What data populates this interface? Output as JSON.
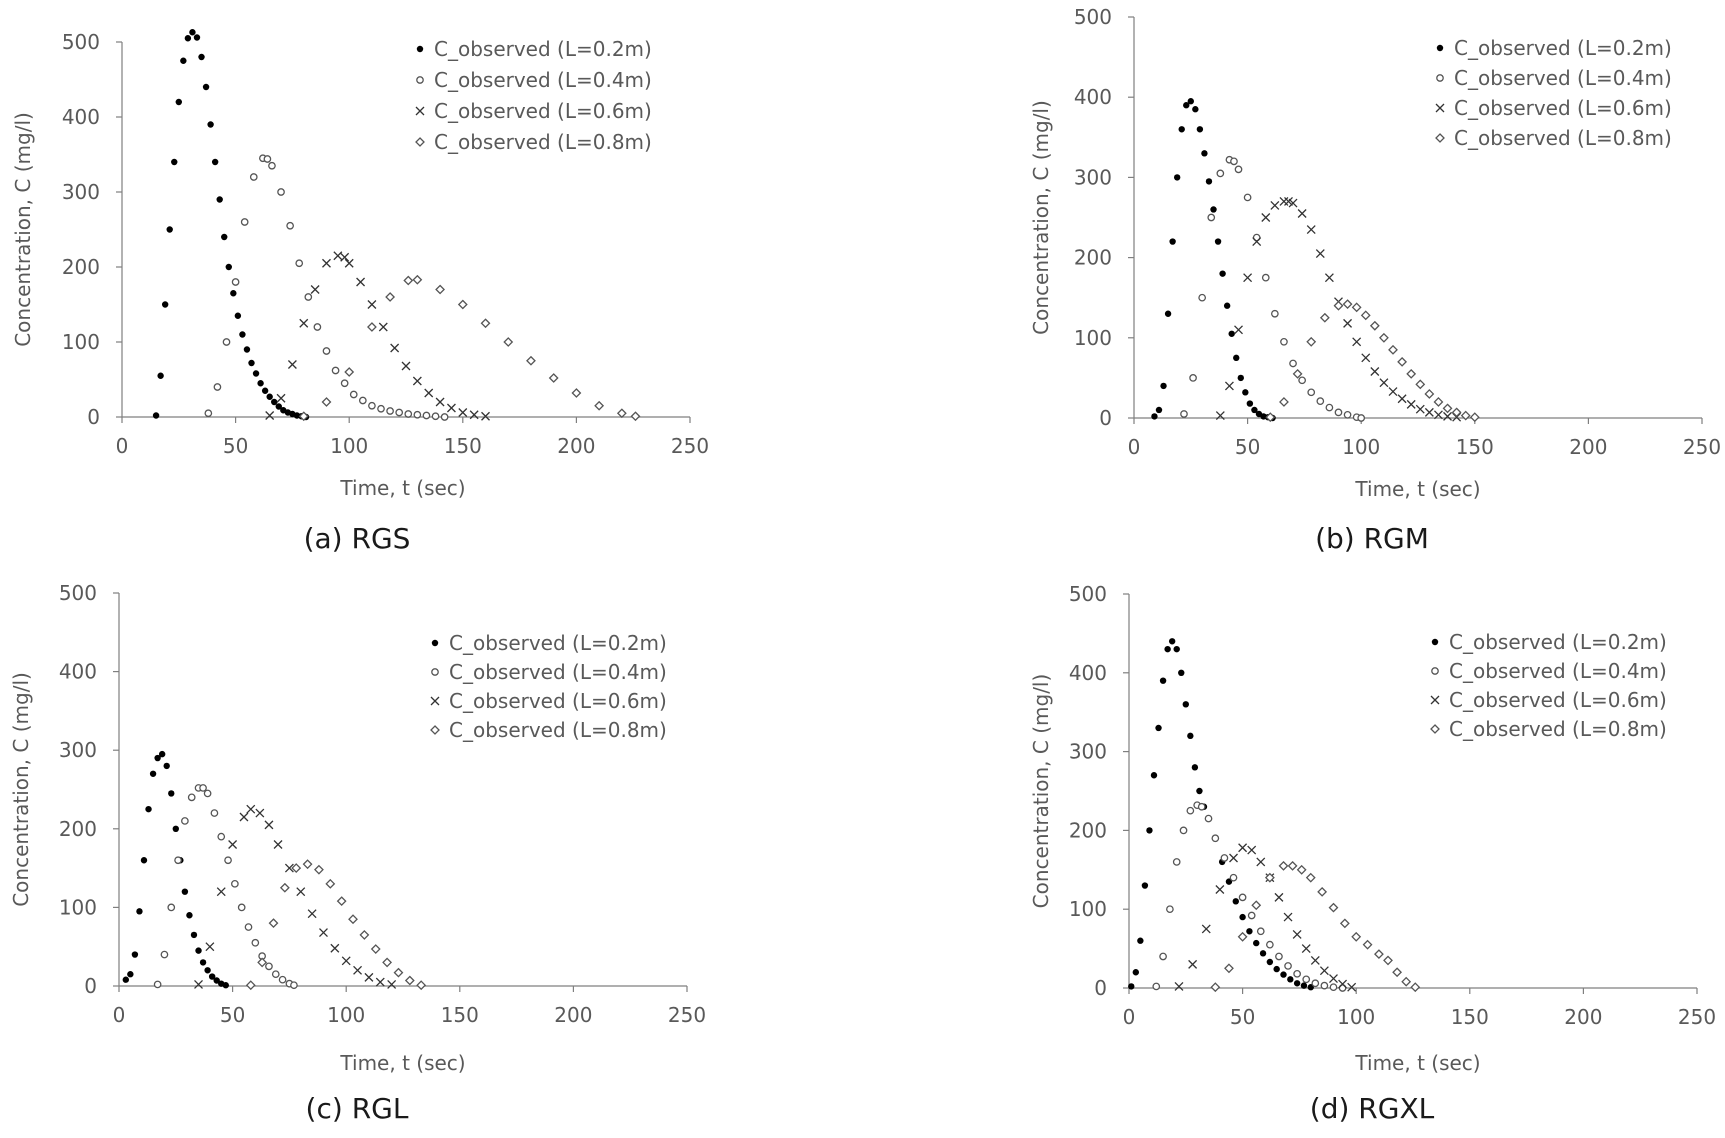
{
  "chart_data": [
    {
      "type": "scatter",
      "caption": "(a) RGS",
      "xlabel": "Time, t (sec)",
      "ylabel": "Concentration, C (mg/l)",
      "xlim": [
        0,
        250
      ],
      "ylim": [
        0,
        500
      ],
      "xticks": [
        0,
        50,
        100,
        150,
        200,
        250
      ],
      "yticks": [
        0,
        100,
        200,
        300,
        400,
        500
      ],
      "legend_position": "top-right",
      "series": [
        {
          "name": "C_observed (L=0.2m)",
          "marker": "dot",
          "x": [
            15,
            17,
            19,
            21,
            23,
            25,
            27,
            29,
            31,
            33,
            35,
            37,
            39,
            41,
            43,
            45,
            47,
            49,
            51,
            53,
            55,
            57,
            59,
            61,
            63,
            65,
            67,
            69,
            71,
            73,
            75,
            77,
            79,
            81
          ],
          "y": [
            2,
            55,
            150,
            250,
            340,
            420,
            475,
            505,
            513,
            506,
            480,
            440,
            390,
            340,
            290,
            240,
            200,
            165,
            135,
            110,
            90,
            72,
            58,
            45,
            35,
            27,
            20,
            14,
            9,
            6,
            4,
            2,
            1,
            0
          ]
        },
        {
          "name": "C_observed (L=0.4m)",
          "marker": "circle",
          "x": [
            38,
            42,
            46,
            50,
            54,
            58,
            62,
            64,
            66,
            70,
            74,
            78,
            82,
            86,
            90,
            94,
            98,
            102,
            106,
            110,
            114,
            118,
            122,
            126,
            130,
            134,
            138,
            142
          ],
          "y": [
            5,
            40,
            100,
            180,
            260,
            320,
            345,
            344,
            335,
            300,
            255,
            205,
            160,
            120,
            88,
            62,
            45,
            30,
            22,
            15,
            11,
            8,
            6,
            4,
            3,
            2,
            1,
            0
          ]
        },
        {
          "name": "C_observed (L=0.6m)",
          "marker": "x",
          "x": [
            65,
            70,
            75,
            80,
            85,
            90,
            95,
            98,
            100,
            105,
            110,
            115,
            120,
            125,
            130,
            135,
            140,
            145,
            150,
            155,
            160
          ],
          "y": [
            2,
            25,
            70,
            125,
            170,
            205,
            215,
            213,
            205,
            180,
            150,
            120,
            92,
            68,
            48,
            32,
            20,
            12,
            6,
            3,
            1
          ]
        },
        {
          "name": "C_observed (L=0.8m)",
          "marker": "diamond",
          "x": [
            80,
            90,
            100,
            110,
            118,
            126,
            130,
            140,
            150,
            160,
            170,
            180,
            190,
            200,
            210,
            220,
            226
          ],
          "y": [
            1,
            20,
            60,
            120,
            160,
            182,
            183,
            170,
            150,
            125,
            100,
            75,
            52,
            32,
            15,
            5,
            1
          ]
        }
      ]
    },
    {
      "type": "scatter",
      "caption": "(b) RGM",
      "xlabel": "Time, t (sec)",
      "ylabel": "Concentration, C (mg/l)",
      "xlim": [
        0,
        250
      ],
      "ylim": [
        0,
        500
      ],
      "xticks": [
        0,
        50,
        100,
        150,
        200,
        250
      ],
      "yticks": [
        0,
        100,
        200,
        300,
        400,
        500
      ],
      "legend_position": "top-right",
      "series": [
        {
          "name": "C_observed (L=0.2m)",
          "marker": "dot",
          "x": [
            9,
            11,
            13,
            15,
            17,
            19,
            21,
            23,
            25,
            27,
            29,
            31,
            33,
            35,
            37,
            39,
            41,
            43,
            45,
            47,
            49,
            51,
            53,
            55,
            57,
            59,
            61
          ],
          "y": [
            2,
            10,
            40,
            130,
            220,
            300,
            360,
            390,
            395,
            385,
            360,
            330,
            295,
            260,
            220,
            180,
            140,
            105,
            75,
            50,
            32,
            18,
            10,
            5,
            2,
            1,
            0
          ]
        },
        {
          "name": "C_observed (L=0.4m)",
          "marker": "circle",
          "x": [
            22,
            26,
            30,
            34,
            38,
            42,
            44,
            46,
            50,
            54,
            58,
            62,
            66,
            70,
            74,
            78,
            82,
            86,
            90,
            94,
            98,
            100
          ],
          "y": [
            5,
            50,
            150,
            250,
            305,
            322,
            320,
            310,
            275,
            225,
            175,
            130,
            95,
            68,
            47,
            32,
            21,
            13,
            7,
            4,
            1,
            0
          ]
        },
        {
          "name": "C_observed (L=0.6m)",
          "marker": "x",
          "x": [
            38,
            42,
            46,
            50,
            54,
            58,
            62,
            66,
            68,
            70,
            74,
            78,
            82,
            86,
            90,
            94,
            98,
            102,
            106,
            110,
            114,
            118,
            122,
            126,
            130,
            134,
            138,
            142
          ],
          "y": [
            3,
            40,
            110,
            175,
            220,
            250,
            265,
            270,
            270,
            268,
            255,
            235,
            205,
            175,
            145,
            118,
            95,
            75,
            58,
            44,
            33,
            24,
            17,
            11,
            7,
            4,
            2,
            1
          ]
        },
        {
          "name": "C_observed (L=0.8m)",
          "marker": "diamond",
          "x": [
            60,
            66,
            72,
            78,
            84,
            90,
            94,
            98,
            102,
            106,
            110,
            114,
            118,
            122,
            126,
            130,
            134,
            138,
            142,
            146,
            150
          ],
          "y": [
            1,
            20,
            55,
            95,
            125,
            140,
            142,
            138,
            128,
            115,
            100,
            85,
            70,
            55,
            42,
            30,
            20,
            12,
            7,
            3,
            1
          ]
        }
      ]
    },
    {
      "type": "scatter",
      "caption": "(c) RGL",
      "xlabel": "Time, t (sec)",
      "ylabel": "Concentration, C (mg/l)",
      "xlim": [
        0,
        250
      ],
      "ylim": [
        0,
        500
      ],
      "xticks": [
        0,
        50,
        100,
        150,
        200,
        250
      ],
      "yticks": [
        0,
        100,
        200,
        300,
        400,
        500
      ],
      "legend_position": "top-right",
      "series": [
        {
          "name": "C_observed (L=0.2m)",
          "marker": "dot",
          "x": [
            3,
            5,
            7,
            9,
            11,
            13,
            15,
            17,
            19,
            21,
            23,
            25,
            27,
            29,
            31,
            33,
            35,
            37,
            39,
            41,
            43,
            45,
            47
          ],
          "y": [
            8,
            15,
            40,
            95,
            160,
            225,
            270,
            290,
            295,
            280,
            245,
            200,
            160,
            120,
            90,
            65,
            45,
            30,
            20,
            12,
            7,
            3,
            1
          ]
        },
        {
          "name": "C_observed (L=0.4m)",
          "marker": "circle",
          "x": [
            17,
            20,
            23,
            26,
            29,
            32,
            35,
            37,
            39,
            42,
            45,
            48,
            51,
            54,
            57,
            60,
            63,
            66,
            69,
            72,
            75,
            77
          ],
          "y": [
            2,
            40,
            100,
            160,
            210,
            240,
            252,
            252,
            245,
            220,
            190,
            160,
            130,
            100,
            75,
            55,
            38,
            25,
            15,
            8,
            3,
            1
          ]
        },
        {
          "name": "C_observed (L=0.6m)",
          "marker": "x",
          "x": [
            35,
            40,
            45,
            50,
            55,
            58,
            62,
            66,
            70,
            75,
            80,
            85,
            90,
            95,
            100,
            105,
            110,
            115,
            120
          ],
          "y": [
            2,
            50,
            120,
            180,
            215,
            225,
            220,
            205,
            180,
            150,
            120,
            92,
            68,
            48,
            32,
            20,
            11,
            5,
            2
          ]
        },
        {
          "name": "C_observed (L=0.8m)",
          "marker": "diamond",
          "x": [
            58,
            63,
            68,
            73,
            78,
            83,
            88,
            93,
            98,
            103,
            108,
            113,
            118,
            123,
            128,
            133
          ],
          "y": [
            1,
            30,
            80,
            125,
            150,
            155,
            148,
            130,
            108,
            85,
            65,
            47,
            30,
            17,
            7,
            1
          ]
        }
      ]
    },
    {
      "type": "scatter",
      "caption": "(d) RGXL",
      "xlabel": "Time, t (sec)",
      "ylabel": "Concentration, C (mg/l)",
      "xlim": [
        0,
        250
      ],
      "ylim": [
        0,
        500
      ],
      "xticks": [
        0,
        50,
        100,
        150,
        200,
        250
      ],
      "yticks": [
        0,
        100,
        200,
        300,
        400,
        500
      ],
      "legend_position": "top-right",
      "series": [
        {
          "name": "C_observed (L=0.2m)",
          "marker": "dot",
          "x": [
            1,
            3,
            5,
            7,
            9,
            11,
            13,
            15,
            17,
            19,
            21,
            23,
            25,
            27,
            29,
            31,
            33,
            35,
            38,
            41,
            44,
            47,
            50,
            53,
            56,
            59,
            62,
            65,
            68,
            71,
            74,
            77,
            80
          ],
          "y": [
            2,
            20,
            60,
            130,
            200,
            270,
            330,
            390,
            430,
            440,
            430,
            400,
            360,
            320,
            280,
            250,
            230,
            215,
            190,
            160,
            135,
            110,
            90,
            72,
            57,
            44,
            33,
            24,
            17,
            11,
            6,
            3,
            1
          ]
        },
        {
          "name": "C_observed (L=0.4m)",
          "marker": "circle",
          "x": [
            12,
            15,
            18,
            21,
            24,
            27,
            30,
            32,
            35,
            38,
            42,
            46,
            50,
            54,
            58,
            62,
            66,
            70,
            74,
            78,
            82,
            86,
            90,
            94
          ],
          "y": [
            2,
            40,
            100,
            160,
            200,
            225,
            232,
            230,
            215,
            190,
            165,
            140,
            115,
            92,
            72,
            55,
            40,
            28,
            18,
            11,
            6,
            3,
            1,
            0
          ]
        },
        {
          "name": "C_observed (L=0.6m)",
          "marker": "x",
          "x": [
            22,
            28,
            34,
            40,
            46,
            50,
            54,
            58,
            62,
            66,
            70,
            74,
            78,
            82,
            86,
            90,
            94,
            98
          ],
          "y": [
            2,
            30,
            75,
            125,
            165,
            178,
            175,
            160,
            140,
            115,
            90,
            68,
            50,
            35,
            22,
            12,
            5,
            1
          ]
        },
        {
          "name": "C_observed (L=0.8m)",
          "marker": "diamond",
          "x": [
            38,
            44,
            50,
            56,
            62,
            68,
            72,
            76,
            80,
            85,
            90,
            95,
            100,
            105,
            110,
            114,
            118,
            122,
            126
          ],
          "y": [
            1,
            25,
            65,
            105,
            140,
            155,
            155,
            150,
            140,
            122,
            102,
            82,
            65,
            55,
            43,
            35,
            20,
            8,
            1
          ]
        }
      ]
    }
  ]
}
